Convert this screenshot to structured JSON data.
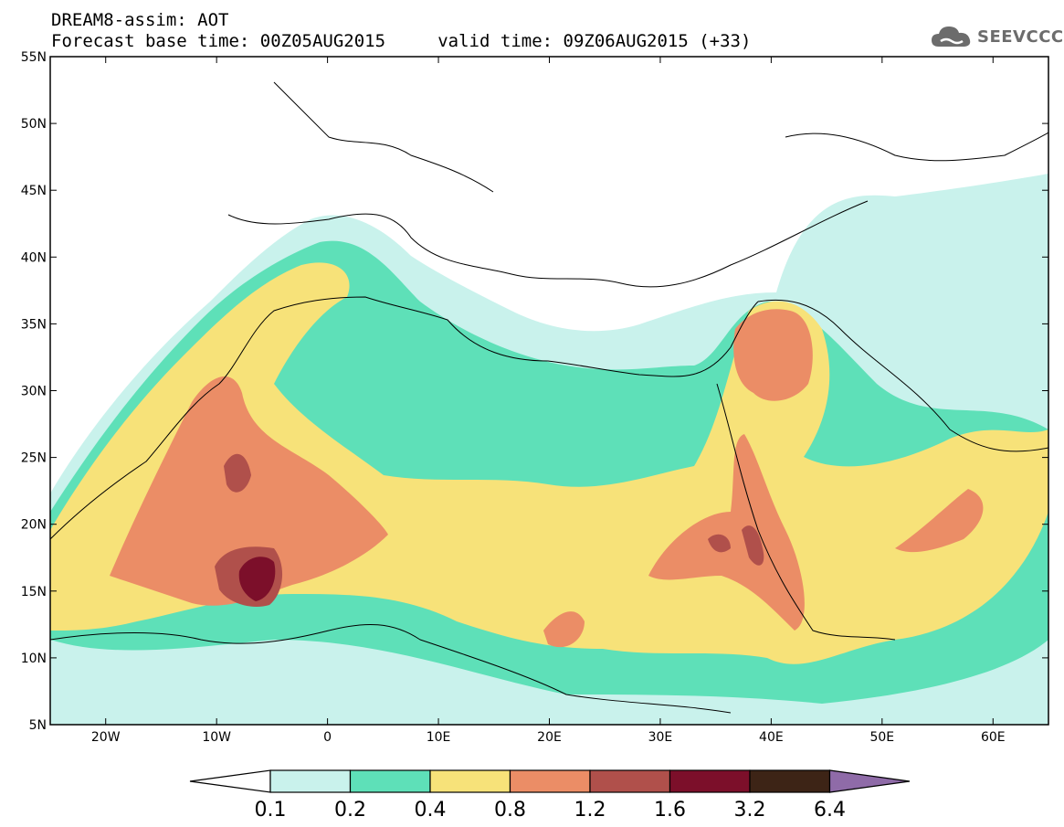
{
  "header": {
    "title": "DREAM8-assim: AOT",
    "subtitle": "Forecast base time: 00Z05AUG2015     valid time: 09Z06AUG2015 (+33)"
  },
  "logo": {
    "text": "SEEVCCC",
    "icon": "cloud-icon",
    "color": "#6c6c6c"
  },
  "map": {
    "lat_ticks": [
      "55N",
      "50N",
      "45N",
      "40N",
      "35N",
      "30N",
      "25N",
      "20N",
      "15N",
      "10N",
      "5N"
    ],
    "lon_ticks": [
      "20W",
      "10W",
      "0",
      "10E",
      "20E",
      "30E",
      "40E",
      "50E",
      "60E"
    ],
    "lat_range": [
      5,
      55
    ],
    "lon_range": [
      -25,
      65
    ]
  },
  "legend": {
    "labels": [
      "0.1",
      "0.2",
      "0.4",
      "0.8",
      "1.2",
      "1.6",
      "3.2",
      "6.4"
    ],
    "bins": [
      {
        "range": "0.1-0.2",
        "color": "#c9f2ec"
      },
      {
        "range": "0.2-0.4",
        "color": "#5ee0b8"
      },
      {
        "range": "0.4-0.8",
        "color": "#f7e279"
      },
      {
        "range": "0.8-1.2",
        "color": "#eb8d66"
      },
      {
        "range": "1.2-1.6",
        "color": "#b0504b"
      },
      {
        "range": "1.6-3.2",
        "color": "#7c0f2a"
      },
      {
        "range": "3.2-6.4",
        "color": "#3d2416"
      }
    ],
    "under_color": "#ffffff",
    "over_color": "#8f6ba8"
  }
}
